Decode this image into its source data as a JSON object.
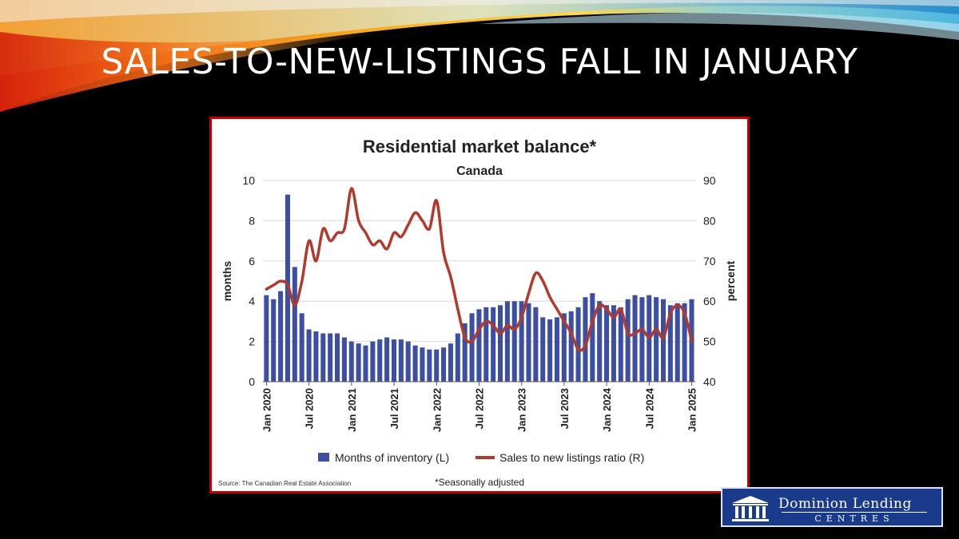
{
  "slide": {
    "title": "SALES-TO-NEW-LISTINGS FALL IN JANUARY",
    "colors": {
      "background": "#000000",
      "title": "#ffffff",
      "frame": "#c00000"
    }
  },
  "logo": {
    "line1": "Dominion Lending",
    "line2": "CENTRES",
    "color": "#1a3a8c"
  },
  "chart_data": {
    "type": "bar",
    "title": "Residential market balance*",
    "subtitle": "Canada",
    "ylabel_left": "months",
    "ylabel_right": "percent",
    "ylim_left": [
      0,
      10
    ],
    "ylim_right": [
      40,
      90
    ],
    "yticks_left": [
      "0",
      "2",
      "4",
      "6",
      "8",
      "10"
    ],
    "yticks_right": [
      "40",
      "50",
      "60",
      "70",
      "80",
      "90"
    ],
    "xticks": [
      "Jan 2020",
      "Jul 2020",
      "Jan 2021",
      "Jul 2021",
      "Jan 2022",
      "Jul 2022",
      "Jan 2023",
      "Jul 2023",
      "Jan 2024",
      "Jul 2024",
      "Jan 2025"
    ],
    "grid": true,
    "legend_position": "bottom",
    "source": "Source: The Canadian Real Estate Association",
    "footnote": "*Seasonally adjusted",
    "series": [
      {
        "name": "Months of inventory (L)",
        "type": "bar",
        "axis": "left",
        "color": "#3c4fa3",
        "values": [
          4.3,
          4.1,
          4.5,
          9.3,
          5.7,
          3.4,
          2.6,
          2.5,
          2.4,
          2.4,
          2.4,
          2.2,
          2.0,
          1.9,
          1.8,
          2.0,
          2.1,
          2.2,
          2.1,
          2.1,
          2.0,
          1.8,
          1.7,
          1.6,
          1.6,
          1.7,
          1.9,
          2.4,
          2.9,
          3.4,
          3.6,
          3.7,
          3.7,
          3.8,
          4.0,
          4.0,
          4.0,
          3.9,
          3.7,
          3.2,
          3.1,
          3.2,
          3.4,
          3.5,
          3.7,
          4.2,
          4.4,
          4.0,
          3.8,
          3.8,
          3.7,
          4.1,
          4.3,
          4.2,
          4.3,
          4.2,
          4.1,
          3.8,
          3.9,
          3.9,
          4.1
        ]
      },
      {
        "name": "Sales to new listings ratio (R)",
        "type": "line",
        "axis": "right",
        "color": "#b23a2c",
        "values": [
          63,
          64,
          65,
          64,
          59,
          65,
          75,
          70,
          78,
          75,
          77,
          78,
          88,
          80,
          77,
          74,
          75,
          73,
          77,
          76,
          79,
          82,
          80,
          78,
          85,
          72,
          66,
          58,
          51,
          50,
          53,
          55,
          54,
          52,
          54,
          53,
          56,
          62,
          67,
          65,
          61,
          58,
          55,
          52,
          48,
          49,
          55,
          59,
          58,
          56,
          58,
          52,
          52,
          53,
          51,
          53,
          51,
          57,
          59,
          57,
          50
        ]
      }
    ]
  }
}
